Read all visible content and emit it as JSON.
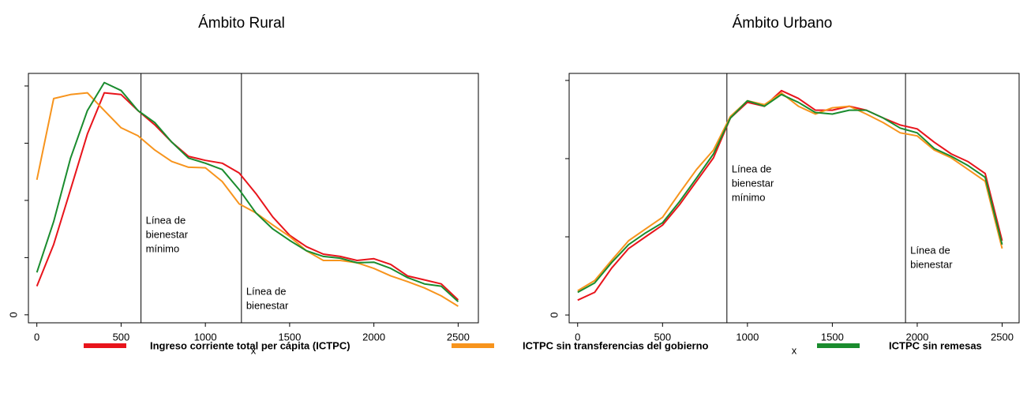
{
  "chart_data": [
    {
      "type": "line",
      "title": "Ámbito Rural",
      "xlabel": "x",
      "x": [
        0,
        100,
        200,
        300,
        400,
        500,
        600,
        700,
        800,
        900,
        1000,
        1100,
        1200,
        1300,
        1400,
        1500,
        1600,
        1700,
        1800,
        1900,
        2000,
        2100,
        2200,
        2300,
        2400,
        2500
      ],
      "series": [
        {
          "values": [
            0.5,
            1.23,
            2.19,
            3.16,
            3.88,
            3.85,
            3.57,
            3.32,
            3.02,
            2.77,
            2.7,
            2.65,
            2.48,
            2.12,
            1.71,
            1.39,
            1.19,
            1.06,
            1.02,
            0.95,
            0.98,
            0.88,
            0.68,
            0.61,
            0.54,
            0.26
          ]
        },
        {
          "values": [
            2.36,
            3.78,
            3.85,
            3.88,
            3.57,
            3.27,
            3.13,
            2.88,
            2.68,
            2.58,
            2.57,
            2.33,
            1.94,
            1.78,
            1.57,
            1.37,
            1.12,
            0.95,
            0.95,
            0.91,
            0.81,
            0.68,
            0.58,
            0.47,
            0.33,
            0.15
          ]
        },
        {
          "values": [
            0.74,
            1.63,
            2.74,
            3.57,
            4.06,
            3.92,
            3.57,
            3.36,
            3.02,
            2.74,
            2.65,
            2.54,
            2.19,
            1.78,
            1.5,
            1.3,
            1.12,
            1.02,
            0.99,
            0.91,
            0.92,
            0.81,
            0.65,
            0.54,
            0.5,
            0.23
          ]
        }
      ],
      "xlim": [
        -50,
        2620
      ],
      "xticks": [
        0,
        500,
        1000,
        1500,
        2000,
        2500
      ],
      "ylim": [
        -0.14,
        4.22
      ],
      "yticks": [
        0,
        {
          "value": 1,
          "label": null
        },
        {
          "value": 2,
          "label": null
        },
        {
          "value": 3,
          "label": null
        },
        {
          "value": 4,
          "label": null
        }
      ],
      "annotations": [
        {
          "x": 618,
          "lines": [
            "Línea de",
            "bienestar",
            "mínimo"
          ]
        },
        {
          "x": 1214,
          "lines": [
            "Línea de",
            "bienestar"
          ]
        }
      ]
    },
    {
      "type": "line",
      "title": "Ámbito Urbano",
      "xlabel": "x",
      "x": [
        0,
        100,
        200,
        300,
        400,
        500,
        600,
        700,
        800,
        900,
        1000,
        1100,
        1200,
        1300,
        1400,
        1500,
        1600,
        1700,
        1800,
        1900,
        2000,
        2100,
        2200,
        2300,
        2400,
        2500
      ],
      "series": [
        {
          "values": [
            0.19,
            0.29,
            0.6,
            0.85,
            1.0,
            1.15,
            1.41,
            1.71,
            2.01,
            2.52,
            2.72,
            2.67,
            2.87,
            2.77,
            2.62,
            2.62,
            2.67,
            2.62,
            2.52,
            2.43,
            2.38,
            2.21,
            2.06,
            1.96,
            1.81,
            0.95
          ]
        },
        {
          "values": [
            0.31,
            0.44,
            0.7,
            0.95,
            1.1,
            1.25,
            1.56,
            1.86,
            2.11,
            2.54,
            2.74,
            2.69,
            2.84,
            2.67,
            2.57,
            2.65,
            2.67,
            2.57,
            2.46,
            2.33,
            2.29,
            2.11,
            2.01,
            1.86,
            1.71,
            0.85
          ]
        },
        {
          "values": [
            0.29,
            0.41,
            0.67,
            0.9,
            1.05,
            1.18,
            1.45,
            1.75,
            2.06,
            2.52,
            2.74,
            2.67,
            2.82,
            2.72,
            2.59,
            2.57,
            2.62,
            2.62,
            2.52,
            2.39,
            2.33,
            2.13,
            2.03,
            1.91,
            1.76,
            0.9
          ]
        }
      ],
      "xlim": [
        -50,
        2600
      ],
      "xticks": [
        0,
        500,
        1000,
        1500,
        2000,
        2500
      ],
      "ylim": [
        -0.1,
        3.09
      ],
      "yticks": [
        0,
        {
          "value": 1,
          "label": null
        },
        {
          "value": 2,
          "label": null
        },
        {
          "value": 3,
          "label": null
        }
      ],
      "annotations": [
        {
          "x": 879,
          "lines": [
            "Línea de",
            "bienestar",
            "mínimo"
          ]
        },
        {
          "x": 1931,
          "lines": [
            "Línea de",
            "bienestar"
          ]
        }
      ]
    }
  ],
  "legend": [
    {
      "name": "Ingreso corriente total per cápita (ICTPC)",
      "color": "#e8141b"
    },
    {
      "name": "ICTPC sin transferencias del gobierno",
      "color": "#f7941d"
    },
    {
      "name": "ICTPC sin remesas",
      "color": "#1a8c2e"
    }
  ]
}
